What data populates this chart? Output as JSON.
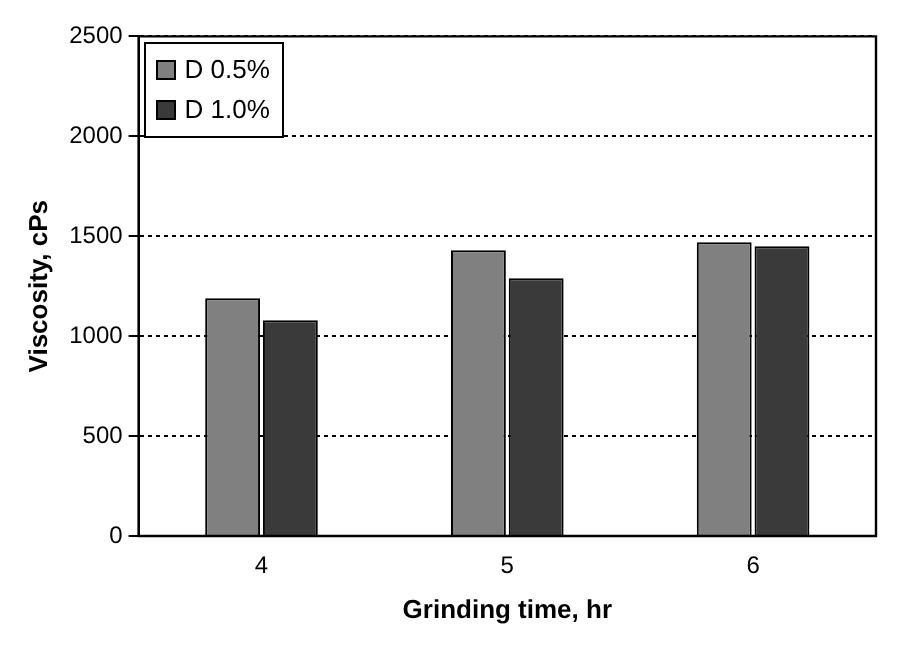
{
  "chart_data": {
    "type": "bar",
    "xlabel": "Grinding time, hr",
    "ylabel": "Viscosity, cPs",
    "categories": [
      "4",
      "5",
      "6"
    ],
    "series": [
      {
        "name": "D 0.5%",
        "color": "#808080",
        "values": [
          1190,
          1430,
          1470
        ]
      },
      {
        "name": "D 1.0%",
        "color": "#3a3a3a",
        "values": [
          1080,
          1290,
          1450
        ]
      }
    ],
    "ylim": [
      0,
      2500
    ],
    "yticks": [
      0,
      500,
      1000,
      1500,
      2000,
      2500
    ],
    "grid": "y",
    "legend": "top left"
  }
}
